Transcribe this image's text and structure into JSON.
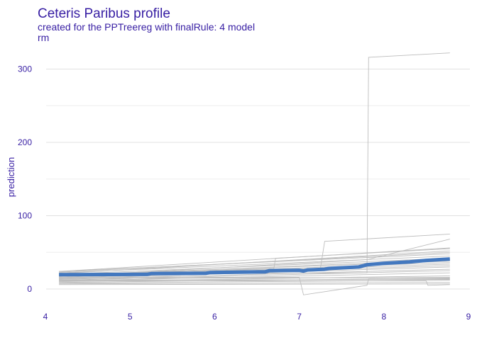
{
  "chart_data": {
    "type": "line",
    "title": "Ceteris Paribus profile",
    "subtitle_line1": "created for the PPTreereg with finalRule:  4 model",
    "subtitle_line2": "rm",
    "xlabel": "",
    "ylabel": "prediction",
    "xlim": [
      4,
      9
    ],
    "ylim": [
      -10,
      330
    ],
    "x_ticks": [
      4,
      5,
      6,
      7,
      8,
      9
    ],
    "y_ticks": [
      0,
      100,
      200,
      300
    ],
    "grid": true,
    "colors": {
      "text": "#371ea3",
      "profiles": "#bdbdbd",
      "mean": "#4378bf"
    },
    "x_range": [
      4.16,
      8.78
    ],
    "profiles": [
      {
        "points": [
          [
            4.16,
            20
          ],
          [
            7.8,
            22
          ],
          [
            7.82,
            316
          ],
          [
            8.78,
            322
          ]
        ]
      },
      {
        "points": [
          [
            4.16,
            16
          ],
          [
            7.0,
            16
          ],
          [
            7.05,
            -8
          ],
          [
            7.8,
            5
          ],
          [
            7.82,
            14
          ],
          [
            8.78,
            14
          ]
        ]
      },
      {
        "points": [
          [
            4.16,
            18
          ],
          [
            7.25,
            28
          ],
          [
            7.3,
            65
          ],
          [
            8.78,
            75
          ]
        ]
      },
      {
        "points": [
          [
            4.16,
            17
          ],
          [
            7.8,
            40
          ],
          [
            8.78,
            68
          ]
        ]
      },
      {
        "points": [
          [
            4.16,
            19
          ],
          [
            6.7,
            28
          ],
          [
            6.72,
            42
          ],
          [
            8.78,
            55
          ]
        ]
      },
      {
        "points": [
          [
            4.16,
            21
          ],
          [
            8.78,
            52
          ]
        ]
      },
      {
        "points": [
          [
            4.16,
            24
          ],
          [
            8.78,
            48
          ]
        ]
      },
      {
        "points": [
          [
            4.16,
            22
          ],
          [
            8.78,
            45
          ]
        ]
      },
      {
        "points": [
          [
            4.16,
            20
          ],
          [
            8.78,
            42
          ]
        ]
      },
      {
        "points": [
          [
            4.16,
            18
          ],
          [
            8.78,
            40
          ]
        ]
      },
      {
        "points": [
          [
            4.16,
            19
          ],
          [
            8.78,
            38
          ]
        ]
      },
      {
        "points": [
          [
            4.16,
            17
          ],
          [
            8.78,
            36
          ]
        ]
      },
      {
        "points": [
          [
            4.16,
            16
          ],
          [
            8.78,
            34
          ]
        ]
      },
      {
        "points": [
          [
            4.16,
            15
          ],
          [
            8.78,
            32
          ]
        ]
      },
      {
        "points": [
          [
            4.16,
            14
          ],
          [
            8.78,
            30
          ]
        ]
      },
      {
        "points": [
          [
            4.16,
            13
          ],
          [
            8.78,
            27
          ]
        ]
      },
      {
        "points": [
          [
            4.16,
            12
          ],
          [
            8.78,
            25
          ]
        ]
      },
      {
        "points": [
          [
            4.16,
            11
          ],
          [
            8.78,
            22
          ]
        ]
      },
      {
        "points": [
          [
            4.16,
            10
          ],
          [
            8.78,
            18
          ]
        ]
      },
      {
        "points": [
          [
            4.16,
            9
          ],
          [
            8.78,
            15
          ]
        ]
      },
      {
        "points": [
          [
            4.16,
            8
          ],
          [
            8.78,
            12
          ]
        ]
      },
      {
        "points": [
          [
            4.16,
            7
          ],
          [
            8.78,
            9
          ]
        ]
      },
      {
        "points": [
          [
            4.16,
            6
          ],
          [
            8.78,
            7
          ]
        ]
      },
      {
        "points": [
          [
            4.16,
            14
          ],
          [
            8.78,
            16
          ]
        ]
      },
      {
        "points": [
          [
            4.16,
            12
          ],
          [
            8.78,
            13
          ]
        ]
      },
      {
        "points": [
          [
            4.16,
            11
          ],
          [
            8.5,
            11
          ],
          [
            8.52,
            5
          ],
          [
            8.78,
            6
          ]
        ]
      },
      {
        "points": [
          [
            4.16,
            24
          ],
          [
            8.78,
            56
          ]
        ]
      },
      {
        "points": [
          [
            4.16,
            23
          ],
          [
            8.78,
            50
          ]
        ]
      }
    ],
    "mean": {
      "name": "",
      "points": [
        [
          4.16,
          19.5
        ],
        [
          5.2,
          20
        ],
        [
          5.25,
          21
        ],
        [
          5.9,
          21.5
        ],
        [
          5.95,
          22.5
        ],
        [
          6.6,
          23.5
        ],
        [
          6.65,
          25
        ],
        [
          7.0,
          25.5
        ],
        [
          7.05,
          24.5
        ],
        [
          7.1,
          26
        ],
        [
          7.3,
          27
        ],
        [
          7.35,
          28
        ],
        [
          7.7,
          30
        ],
        [
          7.8,
          33
        ],
        [
          8.0,
          35
        ],
        [
          8.3,
          37
        ],
        [
          8.5,
          39
        ],
        [
          8.78,
          41
        ]
      ]
    }
  }
}
